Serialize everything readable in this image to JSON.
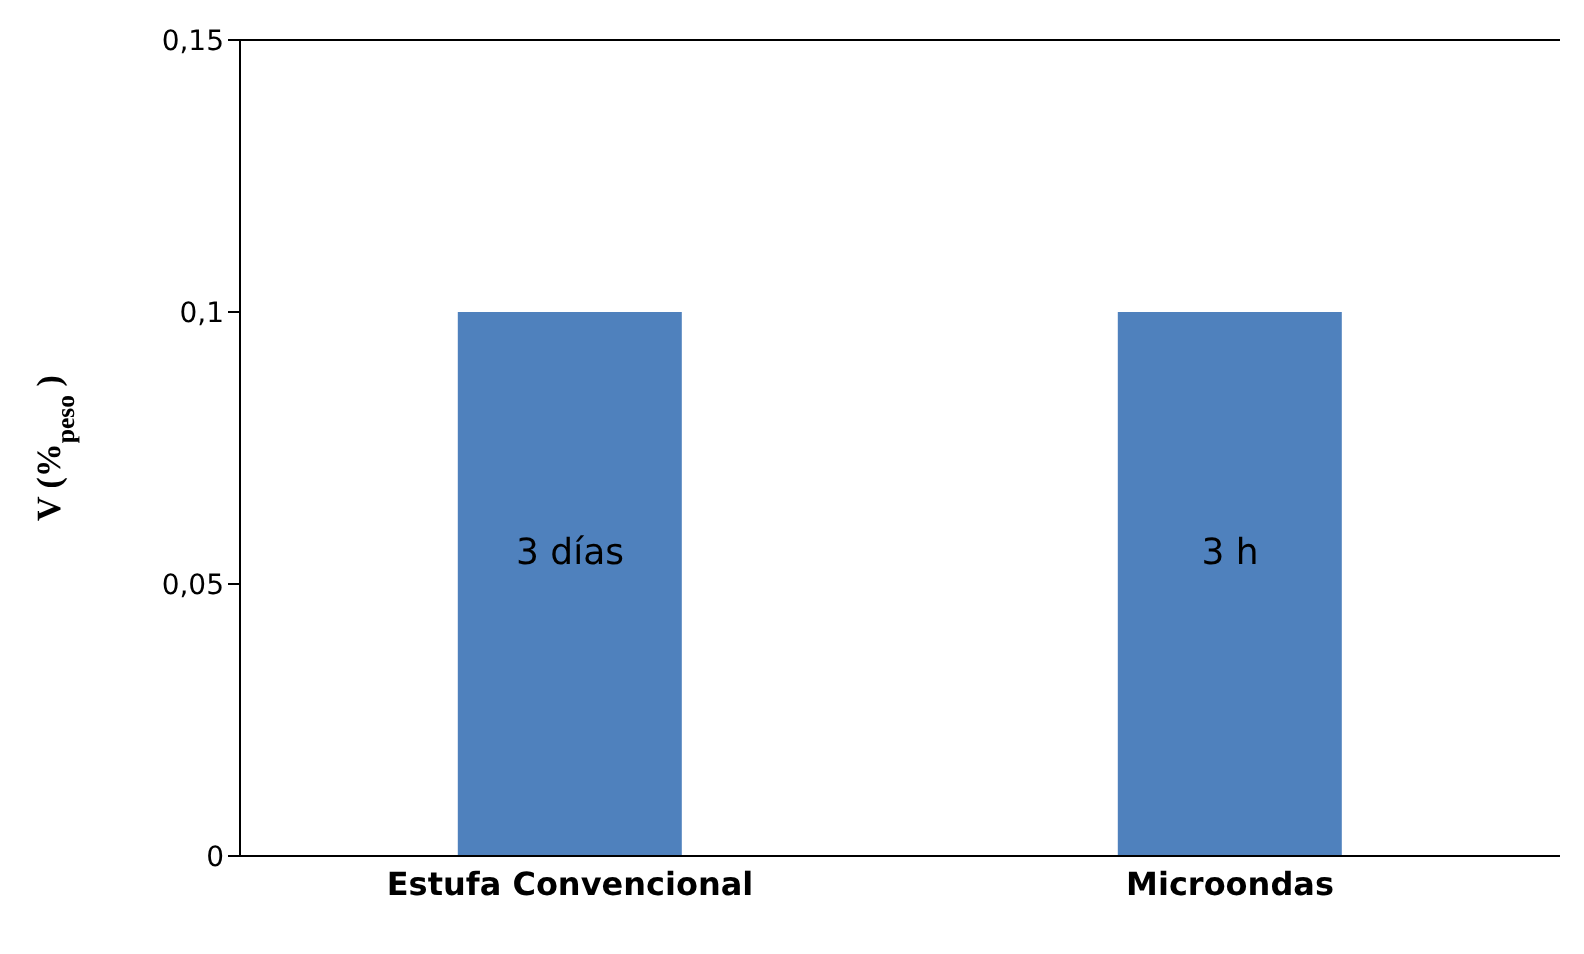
{
  "chart_data": {
    "type": "bar",
    "ylabel": "V (%$_{peso}$)",
    "categories": [
      "Estufa Convencional",
      "Microondas"
    ],
    "values": [
      0.1,
      0.1
    ],
    "color": "#4f81bd",
    "ylim": [
      0,
      0.15
    ],
    "yticks": [
      0,
      {
        "value": 0.05,
        "label": "0,05"
      },
      {
        "value": 0.1,
        "label": "0,1"
      },
      {
        "value": 0.15,
        "label": "0,15"
      }
    ],
    "annotations": [
      "3 días",
      "3 h"
    ],
    "grid": false
  }
}
